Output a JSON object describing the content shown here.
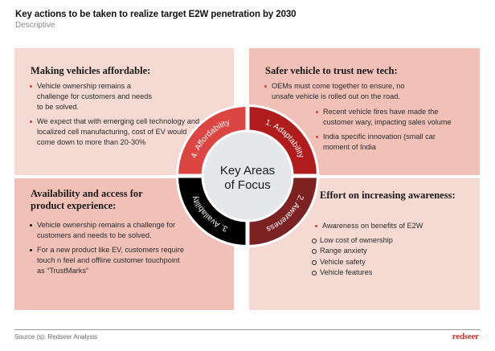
{
  "header": {
    "title": "Key actions to be taken to realize target E2W penetration by 2030",
    "subtitle": "Descriptive"
  },
  "quadrants": {
    "top_left": {
      "heading": "Making vehicles affordable:",
      "bullets": [
        "Vehicle ownership remains a challenge for customers and needs to be solved.",
        "We expect that with emerging cell technology and localized cell manufacturing, cost of EV would come down to more than 20-30%"
      ]
    },
    "top_right": {
      "heading": "Safer vehicle to trust new tech:",
      "bullets": [
        "OEMs must come together to ensure, no unsafe vehicle is rolled out on the road.",
        "Recent vehicle fires have made the customer wary, impacting sales volume",
        "India specific innovation (small car moment of India"
      ]
    },
    "bottom_left": {
      "heading": "Availability and access for product experience:",
      "bullets": [
        "Vehicle ownership remains a challenge for customers and needs to be solved.",
        "For a new product like EV, customers require touch n feel and offline customer touchpoint as “TrustMarks”"
      ]
    },
    "bottom_right": {
      "heading": "Effort on increasing awareness:",
      "bullets": [
        "Awareness on benefits of E2W",
        "Low cost of ownership",
        "Range anxiety",
        "Vehicle safety",
        "Vehicle features"
      ]
    }
  },
  "wheel": {
    "center_line1": "Key Areas",
    "center_line2": "of Focus",
    "segments": [
      {
        "label": "1. Adaptability",
        "color": "#b01c1c"
      },
      {
        "label": "2. Awareness",
        "color": "#7d2222"
      },
      {
        "label": "3. Availability",
        "color": "#000000"
      },
      {
        "label": "4. Affordability",
        "color": "#dc4541"
      }
    ],
    "center_color": "#e6e7e9"
  },
  "footer": {
    "source": "Source (s): Redseer Analysis",
    "logo": "redseer"
  }
}
